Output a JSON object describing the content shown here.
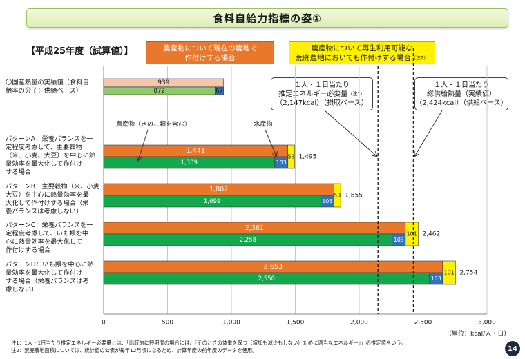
{
  "title": "食料自給力指標の姿①",
  "subtitle": "【平成25年度（試算値）】",
  "header_box_orange": {
    "line1": "農産物について現在の農地で",
    "line2": "作付けする場合"
  },
  "header_box_yellow": {
    "line1": "農産物について再生利用可能な",
    "line2": "荒廃農地においても作付けする場合",
    "sup": "（注2）"
  },
  "callout_energy": {
    "line1": "１人・１日当たり",
    "line2": "推定エネルギー必要量",
    "sup": "（注1）",
    "line3": "（2,147kcal）（摂取ベース）"
  },
  "callout_supply": {
    "line1": "１人・１日当たり",
    "line2": "総供給熱量（実績値）",
    "line3": "（2,424kcal）（供給ベース）"
  },
  "annotation_crops": "農産物（きのこ類を含む）",
  "annotation_marine": "水産物",
  "row_labels": [
    {
      "line1": "〇国産熱量の実績値（食料自",
      "line2": "給率の分子：供給ベース）"
    },
    {
      "line1": "パターンA：栄養バランスを一",
      "line2": "定程度考慮して、主要穀物",
      "line3": "（米、小麦、大豆）を中心に熱",
      "line4": "量効率を最大化して作付け",
      "line5": "する場合"
    },
    {
      "line1": "パターンB：主要穀物（米、小麦",
      "line2": "大豆）を中心に熱量効率を最",
      "line3": "大化して作付けする場合（栄",
      "line4": "養バランスは考慮しない）"
    },
    {
      "line1": "パターンC：栄養バランスを一",
      "line2": "定程度考慮して、いも類を中",
      "line3": "心に熱量効率を最大化して",
      "line4": "作付けする場合"
    },
    {
      "line1": "パターンD：いも類を中心に熱",
      "line2": "量効率を最大化して作付け",
      "line3": "する場合（栄養バランスは考",
      "line4": "慮しない）"
    }
  ],
  "unit": "（単位：kcal/人・日）",
  "notes": {
    "note1": "注1：1人・1日当たり推定エネルギー必要量とは、「比較的に短期間の場合には、『そのときの体重を保つ（増加も減少もしない）ために適当なエネルギー』」の推定値をいう。",
    "note2": "注2：荒廃農地面積については、統計値の公表が毎年12月頃になるため、計算年度の前年度のデータを使用。"
  },
  "page_number": "14",
  "colors": {
    "orange": "#e9772c",
    "green": "#12a94c",
    "blue": "#2f74b8",
    "yellow": "#fff200",
    "peach": "#f8c5a5",
    "light_green": "#8fc96a"
  },
  "chart_data": {
    "type": "bar",
    "orientation": "horizontal",
    "xlim": [
      0,
      3000
    ],
    "xticks": [
      0,
      500,
      1000,
      1500,
      2000,
      2500,
      3000
    ],
    "xtick_labels": [
      "0",
      "500",
      "1,000",
      "1,500",
      "2,000",
      "2,500",
      "3,000"
    ],
    "reference_lines": [
      {
        "label": "１人・１日当たり推定エネルギー必要量",
        "value": 2147
      },
      {
        "label": "１人・１日当たり総供給熱量（実績値）",
        "value": 2424
      }
    ],
    "actual": {
      "total": 939,
      "total_label": "939",
      "crops": 872,
      "crops_label": "872",
      "marine": 67,
      "marine_label": "67"
    },
    "patterns": [
      {
        "orange": 1441,
        "orange_label": "1,441",
        "crops": 1339,
        "crops_label": "1,339",
        "marine": 103,
        "marine_label": "103",
        "yellow": 53,
        "yellow_label": "53",
        "total": 1495,
        "total_label": "1,495"
      },
      {
        "orange": 1802,
        "orange_label": "1,802",
        "crops": 1699,
        "crops_label": "1,699",
        "marine": 103,
        "marine_label": "103",
        "yellow": 53,
        "yellow_label": "53",
        "total": 1855,
        "total_label": "1,855"
      },
      {
        "orange": 2361,
        "orange_label": "2,361",
        "crops": 2258,
        "crops_label": "2,258",
        "marine": 103,
        "marine_label": "103",
        "yellow": 101,
        "yellow_label": "101",
        "total": 2462,
        "total_label": "2,462"
      },
      {
        "orange": 2653,
        "orange_label": "2,653",
        "crops": 2550,
        "crops_label": "2,550",
        "marine": 103,
        "marine_label": "103",
        "yellow": 101,
        "yellow_label": "101",
        "total": 2754,
        "total_label": "2,754"
      }
    ]
  }
}
